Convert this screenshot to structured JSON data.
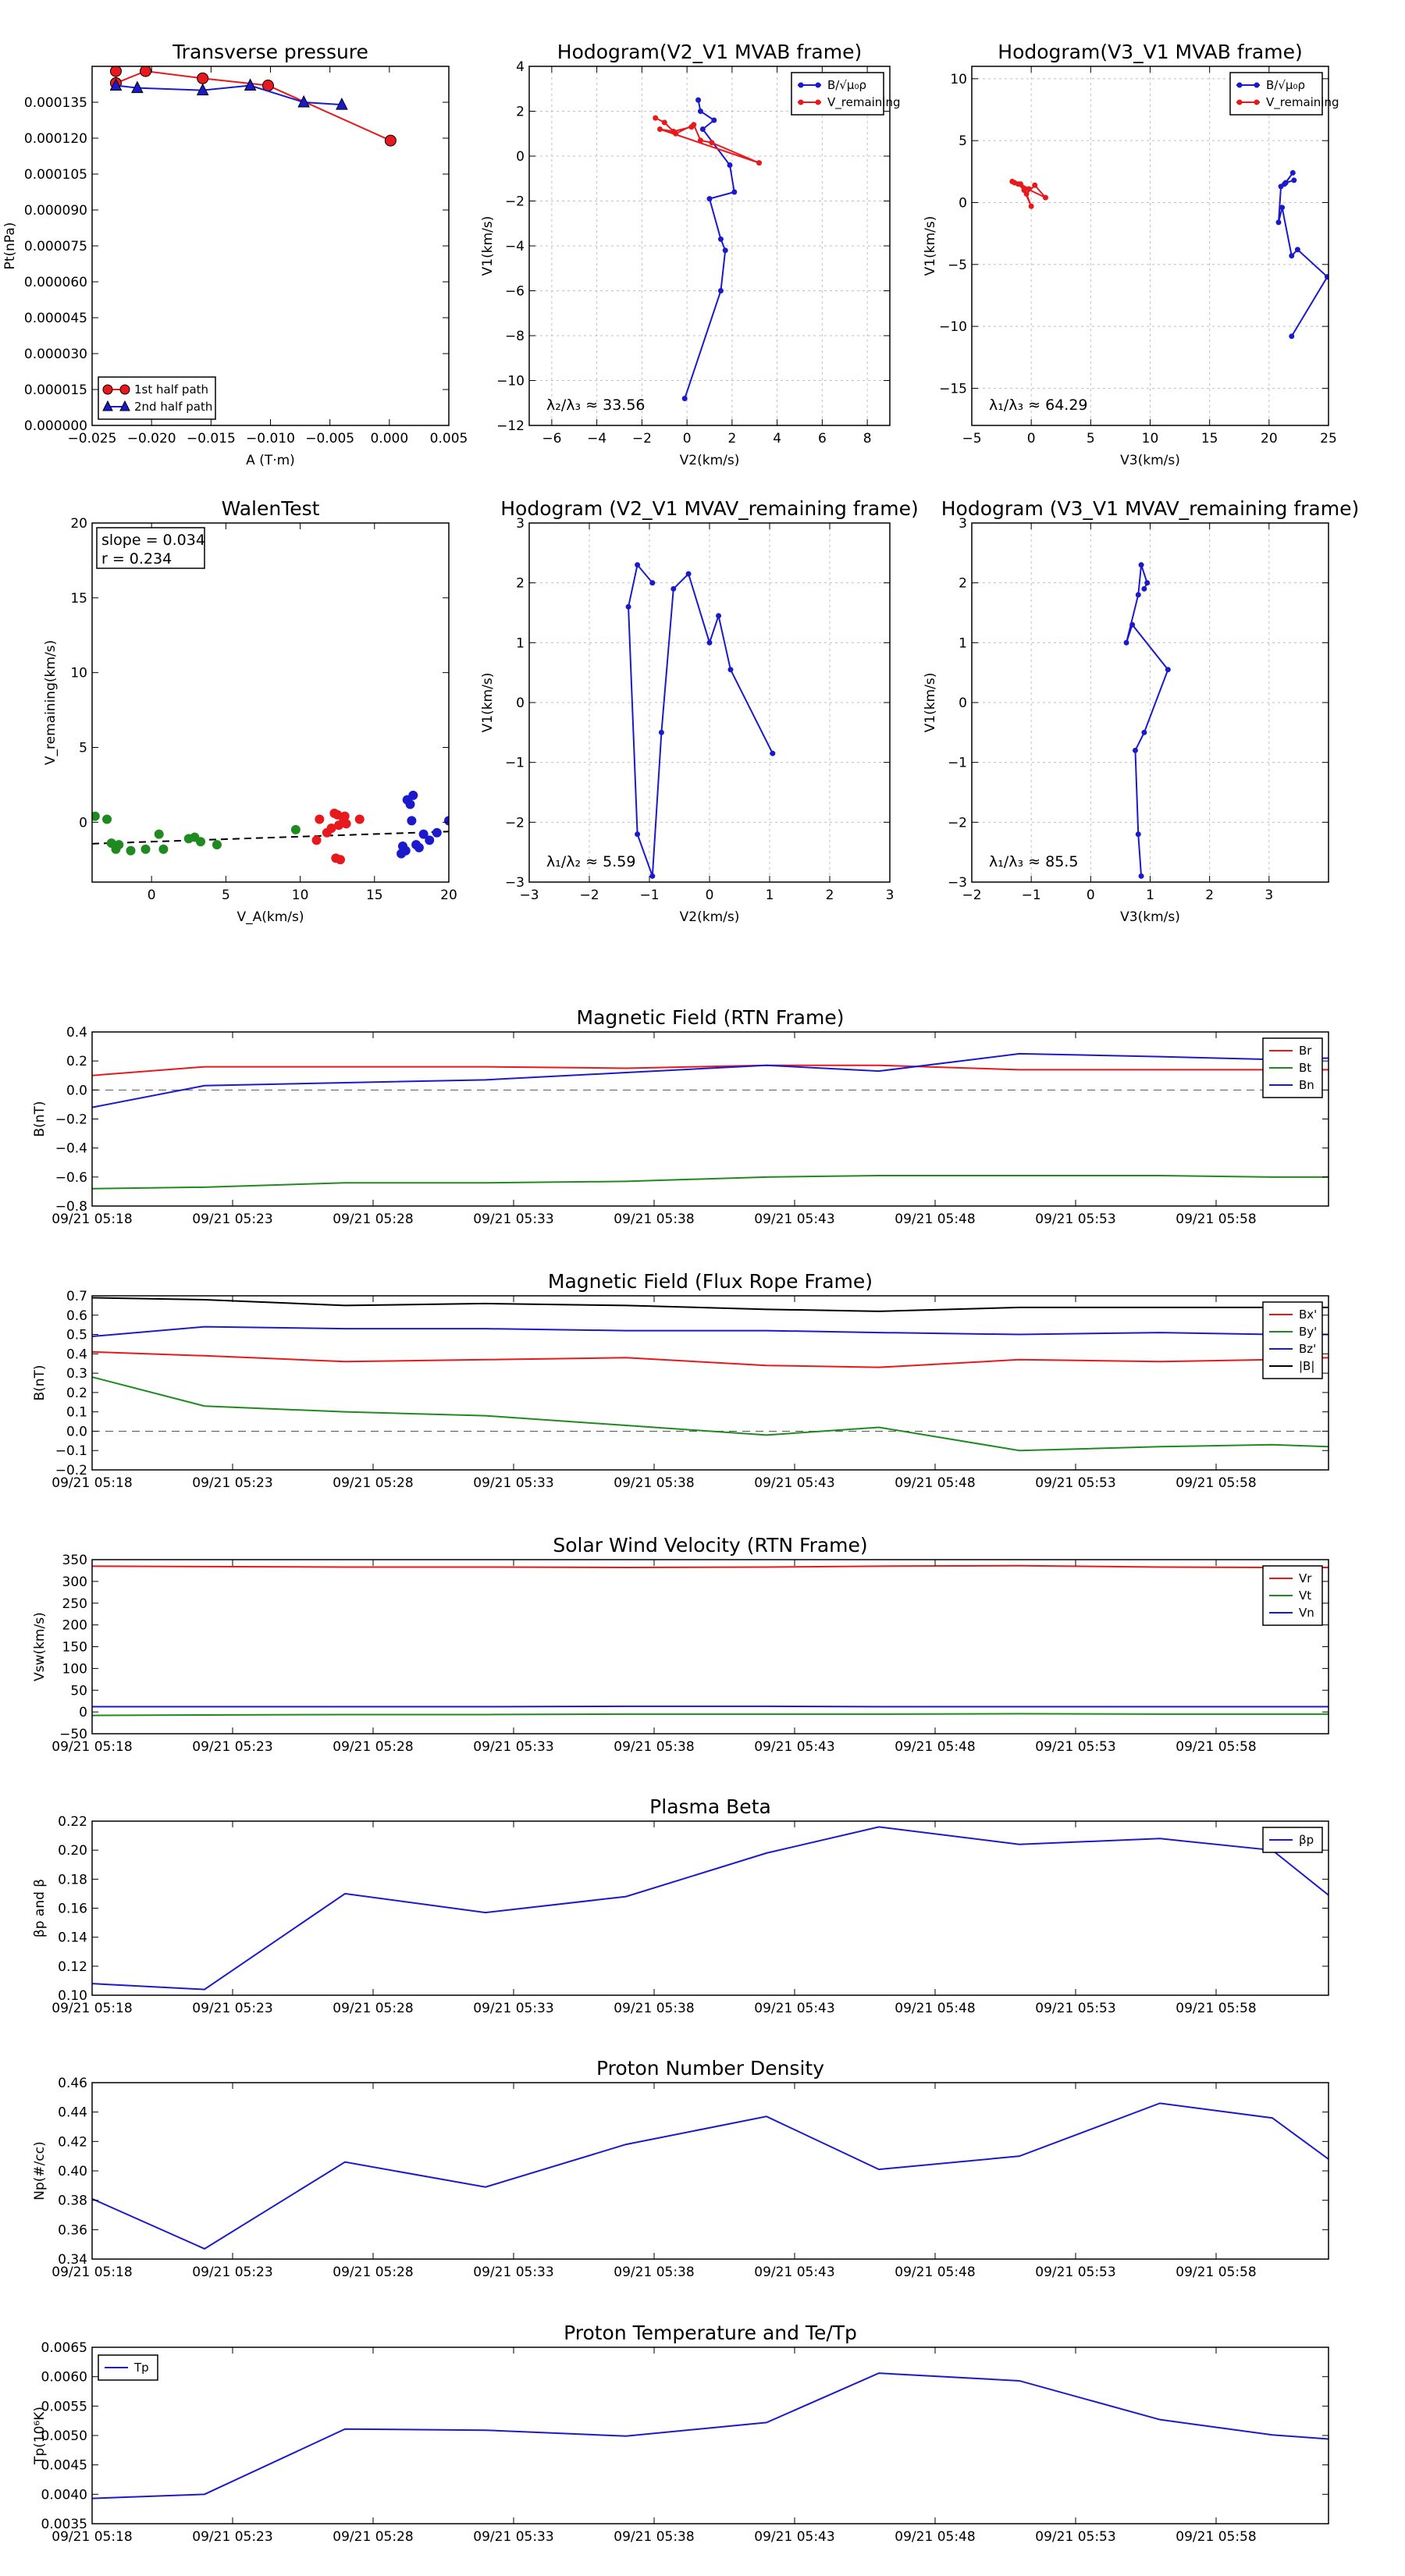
{
  "colors": {
    "red": "#e8191c",
    "blue": "#1a1acc",
    "green": "#1f8a1f",
    "black": "#000000",
    "grid": "#bfbfbf"
  },
  "time_ticks": [
    "09/21 05:18",
    "09/21 05:23",
    "09/21 05:28",
    "09/21 05:33",
    "09/21 05:38",
    "09/21 05:43",
    "09/21 05:48",
    "09/21 05:53",
    "09/21 05:58"
  ],
  "chart_data": [
    {
      "type": "scatter",
      "title": "Transverse pressure",
      "xlabel": "A (T·m)",
      "ylabel": "Pt(nPa)",
      "xlim": [
        -0.025,
        0.005
      ],
      "ylim": [
        0,
        0.00015
      ],
      "xticks": [
        "−0.025",
        "−0.020",
        "−0.015",
        "−0.010",
        "−0.005",
        "0.000",
        "0.005"
      ],
      "yticks": [
        "0.000000",
        "0.000015",
        "0.000030",
        "0.000045",
        "0.000060",
        "0.000075",
        "0.000090",
        "0.000105",
        "0.000120",
        "0.000135"
      ],
      "legend_position": "bottom-left",
      "series": [
        {
          "name": "1st half path",
          "color": "red",
          "marker": "circle",
          "x": [
            -0.023,
            -0.023,
            -0.0205,
            -0.0157,
            -0.0102,
            0.0001
          ],
          "y": [
            0.000148,
            0.000143,
            0.000148,
            0.000145,
            0.000142,
            0.000119
          ]
        },
        {
          "name": "2nd half path",
          "color": "blue",
          "marker": "triangle",
          "x": [
            -0.023,
            -0.0212,
            -0.0157,
            -0.0117,
            -0.0072,
            -0.004
          ],
          "y": [
            0.000142,
            0.000141,
            0.00014,
            0.000142,
            0.000135,
            0.000134
          ]
        }
      ]
    },
    {
      "type": "line",
      "title": "Hodogram(V2_V1 MVAB frame)",
      "xlabel": "V2(km/s)",
      "ylabel": "V1(km/s)",
      "xlim": [
        -7,
        9
      ],
      "ylim": [
        -12,
        4
      ],
      "xticks": [
        "−6",
        "−4",
        "−2",
        "0",
        "2",
        "4",
        "6",
        "8"
      ],
      "yticks": [
        "−12",
        "−10",
        "−8",
        "−6",
        "−4",
        "−2",
        "0",
        "2",
        "4"
      ],
      "grid": true,
      "legend_position": "top-right",
      "annotation": "λ₂/λ₃ ≈ 33.56",
      "series": [
        {
          "name": "B/√μ₀ρ",
          "color": "blue",
          "x": [
            -0.1,
            1.5,
            1.7,
            1.5,
            1.0,
            2.1,
            1.9,
            0.7,
            1.2,
            0.6,
            0.5
          ],
          "y": [
            -10.8,
            -6.0,
            -4.2,
            -3.7,
            -1.9,
            -1.6,
            -0.4,
            1.2,
            1.6,
            2.0,
            2.5
          ]
        },
        {
          "name": "V_remaining",
          "color": "red",
          "x": [
            -1.4,
            -1.0,
            -0.5,
            0.3,
            0.6,
            1.1,
            3.2,
            -1.2,
            -0.6,
            0.2
          ],
          "y": [
            1.7,
            1.5,
            1.0,
            1.4,
            0.7,
            0.6,
            -0.3,
            1.2,
            1.1,
            1.3
          ]
        }
      ]
    },
    {
      "type": "line",
      "title": "Hodogram(V3_V1 MVAB frame)",
      "xlabel": "V3(km/s)",
      "ylabel": "V1(km/s)",
      "xlim": [
        -5,
        25
      ],
      "ylim": [
        -18,
        11
      ],
      "xticks": [
        "−5",
        "0",
        "5",
        "10",
        "15",
        "20",
        "25"
      ],
      "yticks": [
        "−15",
        "−10",
        "−5",
        "0",
        "5",
        "10"
      ],
      "grid": true,
      "legend_position": "top-right",
      "annotation": "λ₁/λ₃ ≈ 64.29",
      "series": [
        {
          "name": "B/√μ₀ρ",
          "color": "blue",
          "x": [
            21.9,
            24.9,
            22.4,
            21.9,
            21.1,
            20.8,
            21.0,
            21.3,
            22.0,
            21.4,
            22.1
          ],
          "y": [
            -10.8,
            -6.0,
            -3.8,
            -4.3,
            -0.4,
            -1.6,
            1.3,
            1.5,
            2.4,
            1.6,
            1.8
          ]
        },
        {
          "name": "V_remaining",
          "color": "red",
          "x": [
            -1.6,
            -1.1,
            -0.6,
            0.0,
            -0.4,
            0.3,
            1.2,
            -1.4,
            -0.9,
            -0.2
          ],
          "y": [
            1.7,
            1.5,
            1.0,
            -0.3,
            0.7,
            1.4,
            0.4,
            1.6,
            1.5,
            1.1
          ]
        }
      ]
    },
    {
      "type": "scatter",
      "title": "WalenTest",
      "xlabel": "V_A(km/s)",
      "ylabel": "V_remaining(km/s)",
      "xlim": [
        -4,
        20
      ],
      "ylim": [
        -4,
        20
      ],
      "xticks": [
        "0",
        "5",
        "10",
        "15",
        "20"
      ],
      "yticks": [
        "0",
        "5",
        "10",
        "15",
        "20"
      ],
      "annotation": [
        "slope = 0.034",
        "r = 0.234"
      ],
      "fit": {
        "slope": 0.034,
        "intercept": -1.3
      },
      "series": [
        {
          "color": "green",
          "x": [
            -3.8,
            -3.0,
            -2.7,
            -2.4,
            -2.2,
            -1.4,
            -0.4,
            0.5,
            0.8,
            2.5,
            2.9,
            3.3,
            4.4,
            9.7
          ],
          "y": [
            0.4,
            0.2,
            -1.4,
            -1.8,
            -1.5,
            -1.9,
            -1.8,
            -0.8,
            -1.8,
            -1.1,
            -1.0,
            -1.3,
            -1.5,
            -0.5
          ]
        },
        {
          "color": "red",
          "x": [
            11.1,
            11.3,
            11.8,
            12.1,
            12.3,
            12.4,
            12.5,
            12.6,
            12.7,
            12.9,
            13.0,
            13.1,
            14.0
          ],
          "y": [
            -1.2,
            0.2,
            -0.7,
            -0.4,
            0.6,
            -2.4,
            0.5,
            -0.2,
            -2.5,
            0.3,
            0.4,
            -0.1,
            0.2
          ]
        },
        {
          "color": "blue",
          "x": [
            16.8,
            16.9,
            17.1,
            17.2,
            17.4,
            17.5,
            17.6,
            17.8,
            18.0,
            18.3,
            18.7,
            19.2,
            20.0
          ],
          "y": [
            -2.1,
            -1.6,
            -1.9,
            1.5,
            1.2,
            0.1,
            1.8,
            -1.5,
            -1.7,
            -0.8,
            -1.2,
            -0.7,
            0.1
          ]
        }
      ]
    },
    {
      "type": "line",
      "title": "Hodogram (V2_V1 MVAV_remaining frame)",
      "xlabel": "V2(km/s)",
      "ylabel": "V1(km/s)",
      "xlim": [
        -3,
        3
      ],
      "ylim": [
        -3,
        3
      ],
      "xticks": [
        "−3",
        "−2",
        "−1",
        "0",
        "1",
        "2",
        "3"
      ],
      "yticks": [
        "−3",
        "−2",
        "−1",
        "0",
        "1",
        "2",
        "3"
      ],
      "grid": true,
      "annotation": "λ₁/λ₂ ≈ 5.59",
      "series": [
        {
          "color": "blue",
          "x": [
            1.05,
            0.35,
            0.15,
            0.0,
            -0.35,
            -0.6,
            -0.8,
            -0.95,
            -1.2,
            -1.35,
            -1.2,
            -0.95
          ],
          "y": [
            -0.85,
            0.55,
            1.45,
            1.0,
            2.15,
            1.9,
            -0.5,
            -2.9,
            -2.2,
            1.6,
            2.3,
            2.0
          ]
        }
      ]
    },
    {
      "type": "line",
      "title": "Hodogram (V3_V1 MVAV_remaining frame)",
      "xlabel": "V3(km/s)",
      "ylabel": "V1(km/s)",
      "xlim": [
        -2,
        4
      ],
      "ylim": [
        -3,
        3
      ],
      "xticks": [
        "−2",
        "−1",
        "0",
        "1",
        "2",
        "3"
      ],
      "yticks": [
        "−3",
        "−2",
        "−1",
        "0",
        "1",
        "2",
        "3"
      ],
      "grid": true,
      "annotation": "λ₁/λ₃ ≈ 85.5",
      "series": [
        {
          "color": "blue",
          "x": [
            0.85,
            0.8,
            0.75,
            0.9,
            1.3,
            0.7,
            0.6,
            0.8,
            0.85,
            0.95,
            0.9
          ],
          "y": [
            -2.9,
            -2.2,
            -0.8,
            -0.5,
            0.55,
            1.3,
            1.0,
            1.8,
            2.3,
            2.0,
            1.9
          ]
        }
      ]
    },
    {
      "type": "line",
      "title": "Magnetic Field (RTN Frame)",
      "ylabel": "B(nT)",
      "xlim": [
        0,
        44
      ],
      "ylim": [
        -0.8,
        0.4
      ],
      "yticks": [
        "−0.8",
        "−0.6",
        "−0.4",
        "−0.2",
        "0.0",
        "0.2",
        "0.4"
      ],
      "zero_line": true,
      "legend_position": "top-right",
      "series": [
        {
          "name": "Br",
          "color": "red",
          "t": [
            0,
            4,
            9,
            14,
            19,
            24,
            28,
            33,
            38,
            42,
            44
          ],
          "values": [
            0.1,
            0.16,
            0.16,
            0.16,
            0.15,
            0.17,
            0.17,
            0.14,
            0.14,
            0.14,
            0.14
          ]
        },
        {
          "name": "Bt",
          "color": "green",
          "t": [
            0,
            4,
            9,
            14,
            19,
            24,
            28,
            33,
            38,
            42,
            44
          ],
          "values": [
            -0.68,
            -0.67,
            -0.64,
            -0.64,
            -0.63,
            -0.6,
            -0.59,
            -0.59,
            -0.59,
            -0.6,
            -0.6
          ]
        },
        {
          "name": "Bn",
          "color": "blue",
          "t": [
            0,
            4,
            9,
            14,
            19,
            24,
            28,
            33,
            38,
            42,
            44
          ],
          "values": [
            -0.12,
            0.03,
            0.05,
            0.07,
            0.12,
            0.17,
            0.13,
            0.25,
            0.23,
            0.21,
            0.22
          ]
        }
      ]
    },
    {
      "type": "line",
      "title": "Magnetic Field (Flux Rope Frame)",
      "ylabel": "B(nT)",
      "xlim": [
        0,
        44
      ],
      "ylim": [
        -0.2,
        0.7
      ],
      "yticks": [
        "−0.2",
        "−0.1",
        "0.0",
        "0.1",
        "0.2",
        "0.3",
        "0.4",
        "0.5",
        "0.6",
        "0.7"
      ],
      "zero_line": true,
      "legend_position": "top-right",
      "series": [
        {
          "name": "Bx'",
          "color": "red",
          "t": [
            0,
            4,
            9,
            14,
            19,
            24,
            28,
            33,
            38,
            42,
            44
          ],
          "values": [
            0.41,
            0.39,
            0.36,
            0.37,
            0.38,
            0.34,
            0.33,
            0.37,
            0.36,
            0.37,
            0.38
          ]
        },
        {
          "name": "By'",
          "color": "green",
          "t": [
            0,
            4,
            9,
            14,
            19,
            24,
            28,
            33,
            38,
            42,
            44
          ],
          "values": [
            0.28,
            0.13,
            0.1,
            0.08,
            0.03,
            -0.02,
            0.02,
            -0.1,
            -0.08,
            -0.07,
            -0.08
          ]
        },
        {
          "name": "Bz'",
          "color": "blue",
          "t": [
            0,
            4,
            9,
            14,
            19,
            24,
            28,
            33,
            38,
            42,
            44
          ],
          "values": [
            0.49,
            0.54,
            0.53,
            0.53,
            0.52,
            0.52,
            0.51,
            0.5,
            0.51,
            0.5,
            0.5
          ]
        },
        {
          "name": "|B|",
          "color": "black",
          "t": [
            0,
            4,
            9,
            14,
            19,
            24,
            28,
            33,
            38,
            42,
            44
          ],
          "values": [
            0.69,
            0.68,
            0.65,
            0.66,
            0.65,
            0.63,
            0.62,
            0.64,
            0.64,
            0.64,
            0.64
          ]
        }
      ]
    },
    {
      "type": "line",
      "title": "Solar Wind Velocity (RTN Frame)",
      "ylabel": "Vsw(km/s)",
      "xlim": [
        0,
        44
      ],
      "ylim": [
        -50,
        350
      ],
      "yticks": [
        "−50",
        "0",
        "50",
        "100",
        "150",
        "200",
        "250",
        "300",
        "350"
      ],
      "legend_position": "top-right",
      "series": [
        {
          "name": "Vr",
          "color": "red",
          "t": [
            0,
            4,
            9,
            14,
            19,
            24,
            28,
            33,
            38,
            42,
            44
          ],
          "values": [
            335,
            334,
            333,
            333,
            332,
            333,
            335,
            336,
            333,
            332,
            332
          ]
        },
        {
          "name": "Vt",
          "color": "green",
          "t": [
            0,
            4,
            9,
            14,
            19,
            24,
            28,
            33,
            38,
            42,
            44
          ],
          "values": [
            -8,
            -7,
            -6,
            -6,
            -5,
            -5,
            -5,
            -4,
            -5,
            -5,
            -5
          ]
        },
        {
          "name": "Vn",
          "color": "blue",
          "t": [
            0,
            4,
            9,
            14,
            19,
            24,
            28,
            33,
            38,
            42,
            44
          ],
          "values": [
            12,
            12,
            12,
            12,
            13,
            13,
            12,
            12,
            12,
            12,
            12
          ]
        }
      ]
    },
    {
      "type": "line",
      "title": "Plasma Beta",
      "ylabel": "βp and β",
      "xlim": [
        0,
        44
      ],
      "ylim": [
        0.1,
        0.22
      ],
      "yticks": [
        "0.10",
        "0.12",
        "0.14",
        "0.16",
        "0.18",
        "0.20",
        "0.22"
      ],
      "legend_position": "top-right",
      "series": [
        {
          "name": "βp",
          "color": "blue",
          "t": [
            0,
            4,
            9,
            14,
            19,
            24,
            28,
            33,
            38,
            42,
            44
          ],
          "values": [
            0.108,
            0.104,
            0.17,
            0.157,
            0.168,
            0.198,
            0.216,
            0.204,
            0.208,
            0.2,
            0.169
          ]
        }
      ]
    },
    {
      "type": "line",
      "title": "Proton Number Density",
      "ylabel": "Np(#/cc)",
      "xlim": [
        0,
        44
      ],
      "ylim": [
        0.34,
        0.46
      ],
      "yticks": [
        "0.34",
        "0.36",
        "0.38",
        "0.40",
        "0.42",
        "0.44",
        "0.46"
      ],
      "series": [
        {
          "color": "blue",
          "t": [
            0,
            4,
            9,
            14,
            19,
            24,
            28,
            33,
            38,
            42,
            44
          ],
          "values": [
            0.381,
            0.347,
            0.406,
            0.389,
            0.418,
            0.437,
            0.401,
            0.41,
            0.446,
            0.436,
            0.408
          ]
        }
      ]
    },
    {
      "type": "line",
      "title": "Proton Temperature and Te/Tp",
      "ylabel": "Tp(10⁶K)",
      "xlim": [
        0,
        44
      ],
      "ylim": [
        0.0035,
        0.0065
      ],
      "yticks": [
        "0.0035",
        "0.0040",
        "0.0045",
        "0.0050",
        "0.0055",
        "0.0060",
        "0.0065"
      ],
      "legend_position": "top-left",
      "series": [
        {
          "name": "Tp",
          "color": "blue",
          "t": [
            0,
            4,
            9,
            14,
            19,
            24,
            28,
            33,
            38,
            42,
            44
          ],
          "values": [
            0.00393,
            0.004,
            0.00511,
            0.00509,
            0.00499,
            0.00522,
            0.00606,
            0.00593,
            0.00527,
            0.00501,
            0.00494
          ]
        }
      ]
    }
  ]
}
